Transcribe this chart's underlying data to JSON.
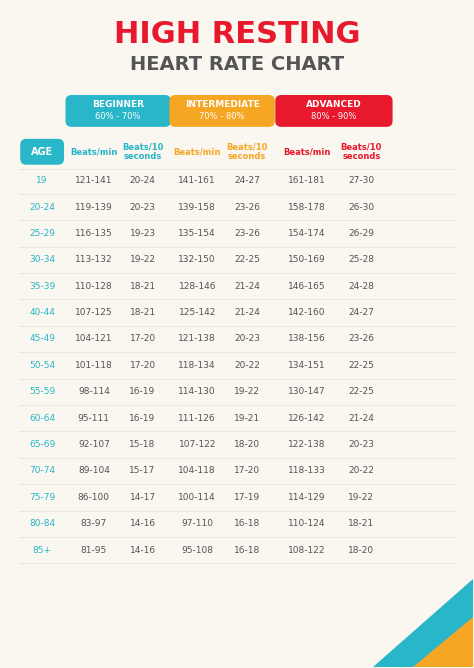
{
  "title_line1": "HIGH RESTING",
  "title_line2": "HEART RATE CHART",
  "bg_color": "#faf6f0",
  "title_color": "#e8192c",
  "subtitle_color": "#555555",
  "beginner_color": "#29b6c8",
  "intermediate_color": "#f5a623",
  "advanced_color": "#e8192c",
  "age_header_color": "#29b6c8",
  "col_header_bpm_color": "#29b6c8",
  "col_header_beats10_beg_color": "#29b6c8",
  "col_header_bpm_inter_color": "#f5a623",
  "col_header_beats10_inter_color": "#f5a623",
  "col_header_bpm_adv_color": "#e8192c",
  "col_header_beats10_adv_color": "#e8192c",
  "data_color": "#555555",
  "categories": [
    "BEGINNER\n60% - 70%",
    "INTERMEDIATE\n70% - 80%",
    "ADVANCED\n80% - 90%"
  ],
  "ages": [
    "19",
    "20-24",
    "25-29",
    "30-34",
    "35-39",
    "40-44",
    "45-49",
    "50-54",
    "55-59",
    "60-64",
    "65-69",
    "70-74",
    "75-79",
    "80-84",
    "85+"
  ],
  "beg_bpm": [
    "121-141",
    "119-139",
    "116-135",
    "113-132",
    "110-128",
    "107-125",
    "104-121",
    "101-118",
    "98-114",
    "95-111",
    "92-107",
    "89-104",
    "86-100",
    "83-97",
    "81-95"
  ],
  "beg_b10": [
    "20-24",
    "20-23",
    "19-23",
    "19-22",
    "18-21",
    "18-21",
    "17-20",
    "17-20",
    "16-19",
    "16-19",
    "15-18",
    "15-17",
    "14-17",
    "14-16",
    "14-16"
  ],
  "int_bpm": [
    "141-161",
    "139-158",
    "135-154",
    "132-150",
    "128-146",
    "125-142",
    "121-138",
    "118-134",
    "114-130",
    "111-126",
    "107-122",
    "104-118",
    "100-114",
    "97-110",
    "95-108"
  ],
  "int_b10": [
    "24-27",
    "23-26",
    "23-26",
    "22-25",
    "21-24",
    "21-24",
    "20-23",
    "20-22",
    "19-22",
    "19-21",
    "18-20",
    "17-20",
    "17-19",
    "16-18",
    "16-18"
  ],
  "adv_bpm": [
    "161-181",
    "158-178",
    "154-174",
    "150-169",
    "146-165",
    "142-160",
    "138-156",
    "134-151",
    "130-147",
    "126-142",
    "122-138",
    "118-133",
    "114-129",
    "110-124",
    "108-122"
  ],
  "adv_b10": [
    "27-30",
    "26-30",
    "26-29",
    "25-28",
    "24-28",
    "24-27",
    "23-26",
    "22-25",
    "22-25",
    "21-24",
    "20-23",
    "20-22",
    "19-22",
    "18-21",
    "18-20"
  ],
  "deco_teal": "#29b6c8",
  "deco_yellow": "#f5a623"
}
